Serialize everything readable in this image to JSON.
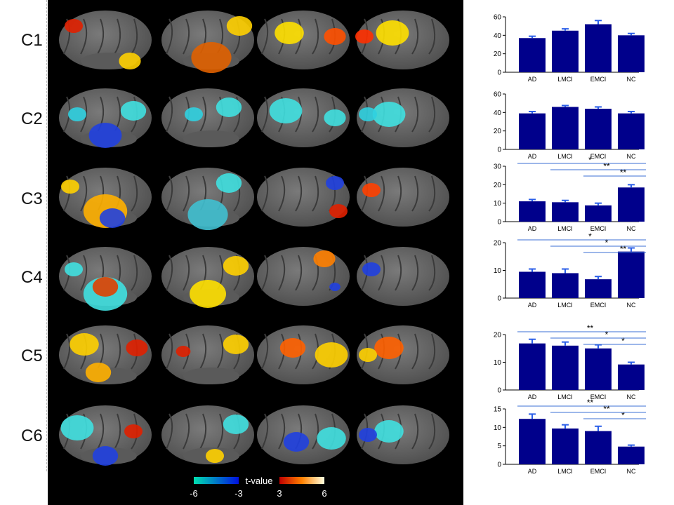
{
  "rows": [
    {
      "label": "C1"
    },
    {
      "label": "C2"
    },
    {
      "label": "C3"
    },
    {
      "label": "C4"
    },
    {
      "label": "C5"
    },
    {
      "label": "C6"
    }
  ],
  "colorbar": {
    "title": "t-value",
    "ticks": [
      "-6",
      "-3",
      "3",
      "6"
    ],
    "colors": {
      "negative_low": "#00e0b0",
      "negative_high": "#0010e0",
      "positive_low": "#c00000",
      "positive_high": "#ffffe0"
    }
  },
  "colors": {
    "bar_fill": "#00008b",
    "error_bar": "#2a5ee8",
    "sig_line": "#3b6fd4"
  },
  "chart_data": [
    {
      "type": "bar",
      "categories": [
        "AD",
        "LMCI",
        "EMCI",
        "NC"
      ],
      "values": [
        37,
        45,
        52,
        40
      ],
      "errors": [
        2,
        2,
        4,
        2
      ],
      "ylim": [
        0,
        60
      ],
      "yticks": [
        0,
        20,
        40,
        60
      ],
      "significance": []
    },
    {
      "type": "bar",
      "categories": [
        "AD",
        "LMCI",
        "EMCI",
        "NC"
      ],
      "values": [
        39,
        46,
        44,
        39
      ],
      "errors": [
        2,
        1.5,
        2,
        2
      ],
      "ylim": [
        0,
        60
      ],
      "yticks": [
        0,
        20,
        40,
        60
      ],
      "significance": []
    },
    {
      "type": "bar",
      "categories": [
        "AD",
        "LMCI",
        "EMCI",
        "NC"
      ],
      "values": [
        11,
        10.5,
        8.8,
        18.5
      ],
      "errors": [
        1,
        1,
        1.2,
        1.5
      ],
      "ylim": [
        0,
        30
      ],
      "yticks": [
        0,
        10,
        20,
        30
      ],
      "significance": [
        {
          "from": 0,
          "to": 3,
          "label": "*"
        },
        {
          "from": 1,
          "to": 3,
          "label": "**"
        },
        {
          "from": 2,
          "to": 3,
          "label": "**"
        }
      ]
    },
    {
      "type": "bar",
      "categories": [
        "AD",
        "LMCI",
        "EMCI",
        "NC"
      ],
      "values": [
        9.5,
        9,
        6.8,
        16.8
      ],
      "errors": [
        1,
        1.5,
        1,
        1.3
      ],
      "ylim": [
        0,
        20
      ],
      "yticks": [
        0,
        10,
        20
      ],
      "significance": [
        {
          "from": 0,
          "to": 3,
          "label": "*"
        },
        {
          "from": 1,
          "to": 3,
          "label": "*"
        },
        {
          "from": 2,
          "to": 3,
          "label": "**"
        }
      ]
    },
    {
      "type": "bar",
      "categories": [
        "AD",
        "LMCI",
        "EMCI",
        "NC"
      ],
      "values": [
        16.8,
        16,
        15,
        9.2
      ],
      "errors": [
        1.5,
        1.3,
        1.3,
        0.8
      ],
      "ylim": [
        0,
        20
      ],
      "yticks": [
        0,
        10,
        20
      ],
      "significance": [
        {
          "from": 0,
          "to": 3,
          "label": "**"
        },
        {
          "from": 1,
          "to": 3,
          "label": "*"
        },
        {
          "from": 2,
          "to": 3,
          "label": "*"
        }
      ]
    },
    {
      "type": "bar",
      "categories": [
        "AD",
        "LMCI",
        "EMCI",
        "NC"
      ],
      "values": [
        12.3,
        9.7,
        9,
        4.8
      ],
      "errors": [
        1.3,
        1,
        1.3,
        0.4
      ],
      "ylim": [
        0,
        15
      ],
      "yticks": [
        0,
        5,
        10,
        15
      ],
      "significance": [
        {
          "from": 0,
          "to": 3,
          "label": "**"
        },
        {
          "from": 1,
          "to": 3,
          "label": "**"
        },
        {
          "from": 2,
          "to": 3,
          "label": "*"
        }
      ]
    }
  ]
}
